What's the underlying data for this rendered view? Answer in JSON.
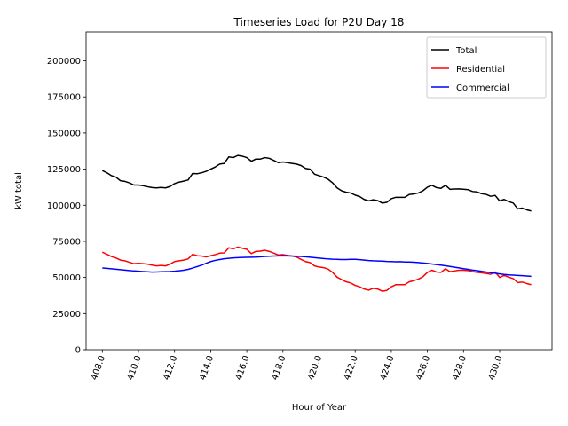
{
  "chart_data": {
    "type": "line",
    "title": "Timeseries Load for P2U   Day 18",
    "xlabel": "Hour of Year",
    "ylabel": "kW total",
    "xlim": [
      407.1,
      432.9
    ],
    "ylim": [
      0,
      220000
    ],
    "xticks": [
      408,
      410,
      412,
      414,
      416,
      418,
      420,
      422,
      424,
      426,
      428,
      430
    ],
    "xtick_labels": [
      "408.0",
      "410.0",
      "412.0",
      "414.0",
      "416.0",
      "418.0",
      "420.0",
      "422.0",
      "424.0",
      "426.0",
      "428.0",
      "430.0"
    ],
    "yticks": [
      0,
      25000,
      50000,
      75000,
      100000,
      125000,
      150000,
      175000,
      200000
    ],
    "ytick_labels": [
      "0",
      "25000",
      "50000",
      "75000",
      "100000",
      "125000",
      "150000",
      "175000",
      "200000"
    ],
    "legend_position": "top-right",
    "x": [
      408.0,
      408.25,
      408.5,
      408.75,
      409.0,
      409.25,
      409.5,
      409.75,
      410.0,
      410.25,
      410.5,
      410.75,
      411.0,
      411.25,
      411.5,
      411.75,
      412.0,
      412.25,
      412.5,
      412.75,
      413.0,
      413.25,
      413.5,
      413.75,
      414.0,
      414.25,
      414.5,
      414.75,
      415.0,
      415.25,
      415.5,
      415.75,
      416.0,
      416.25,
      416.5,
      416.75,
      417.0,
      417.25,
      417.5,
      417.75,
      418.0,
      418.25,
      418.5,
      418.75,
      419.0,
      419.25,
      419.5,
      419.75,
      420.0,
      420.25,
      420.5,
      420.75,
      421.0,
      421.25,
      421.5,
      421.75,
      422.0,
      422.25,
      422.5,
      422.75,
      423.0,
      423.25,
      423.5,
      423.75,
      424.0,
      424.25,
      424.5,
      424.75,
      425.0,
      425.25,
      425.5,
      425.75,
      426.0,
      426.25,
      426.5,
      426.75,
      427.0,
      427.25,
      427.5,
      427.75,
      428.0,
      428.25,
      428.5,
      428.75,
      429.0,
      429.25,
      429.5,
      429.75,
      430.0,
      430.25,
      430.5,
      430.75,
      431.0,
      431.25,
      431.5,
      431.75
    ],
    "series": [
      {
        "name": "Total",
        "color": "#000000",
        "values": [
          124000,
          122500,
          120500,
          119500,
          117000,
          116500,
          115500,
          114000,
          114000,
          113500,
          112800,
          112200,
          112000,
          112300,
          112000,
          113000,
          115000,
          116000,
          116700,
          117500,
          122000,
          121800,
          122500,
          123500,
          125000,
          126500,
          128500,
          129000,
          133500,
          133000,
          134500,
          134000,
          133000,
          130500,
          132000,
          132000,
          133000,
          132500,
          131000,
          129500,
          130000,
          129500,
          129000,
          128500,
          127500,
          125500,
          125000,
          121500,
          120500,
          119500,
          118000,
          115500,
          112000,
          110000,
          109000,
          108500,
          107000,
          106000,
          104000,
          103000,
          103800,
          103200,
          101500,
          102000,
          104500,
          105500,
          105500,
          105500,
          107500,
          107800,
          108500,
          110000,
          112500,
          113800,
          112200,
          111700,
          113800,
          111000,
          111200,
          111300,
          111100,
          110800,
          109500,
          109200,
          108000,
          107500,
          106200,
          106800,
          103000,
          104000,
          102500,
          101500,
          97500,
          98000,
          96800,
          96000
        ]
      },
      {
        "name": "Residential",
        "color": "#ff0000",
        "values": [
          67500,
          66000,
          64500,
          63500,
          62000,
          61500,
          60500,
          59500,
          59800,
          59500,
          59200,
          58500,
          58000,
          58300,
          58000,
          59200,
          61000,
          61500,
          62000,
          62800,
          66000,
          65000,
          64800,
          64200,
          65000,
          65800,
          66800,
          67000,
          70500,
          69800,
          71000,
          70200,
          69500,
          66500,
          68000,
          68200,
          68800,
          68000,
          66800,
          65500,
          65800,
          65200,
          64800,
          64200,
          62500,
          61000,
          60300,
          58000,
          57200,
          56800,
          55800,
          53500,
          50200,
          48500,
          47000,
          46200,
          44500,
          43500,
          42000,
          41200,
          42500,
          42000,
          40500,
          41000,
          43500,
          45000,
          45000,
          45000,
          47000,
          47800,
          48800,
          50500,
          53500,
          55000,
          53800,
          53500,
          56000,
          54000,
          54500,
          55000,
          55000,
          54800,
          54000,
          53500,
          53200,
          52800,
          52200,
          53800,
          50000,
          51500,
          50200,
          49200,
          46500,
          46800,
          45800,
          45000
        ]
      },
      {
        "name": "Commercial",
        "color": "#0000ff",
        "values": [
          56500,
          56300,
          56000,
          55700,
          55400,
          55100,
          54800,
          54500,
          54300,
          54100,
          53900,
          53700,
          53800,
          53900,
          54000,
          54100,
          54300,
          54600,
          55000,
          55600,
          56500,
          57500,
          58500,
          59800,
          61000,
          61800,
          62400,
          62900,
          63200,
          63500,
          63700,
          63800,
          63900,
          64000,
          64100,
          64300,
          64500,
          64700,
          64800,
          64900,
          65000,
          64900,
          64800,
          64700,
          64500,
          64300,
          64000,
          63700,
          63400,
          63100,
          62800,
          62600,
          62500,
          62400,
          62400,
          62500,
          62500,
          62300,
          62000,
          61700,
          61500,
          61400,
          61300,
          61100,
          61000,
          60800,
          60900,
          60700,
          60700,
          60500,
          60300,
          60000,
          59700,
          59300,
          58900,
          58500,
          58100,
          57600,
          57100,
          56600,
          56100,
          55600,
          55100,
          54700,
          54200,
          53800,
          53300,
          52900,
          52500,
          52100,
          51800,
          51600,
          51400,
          51200,
          51000,
          50800
        ]
      }
    ]
  }
}
